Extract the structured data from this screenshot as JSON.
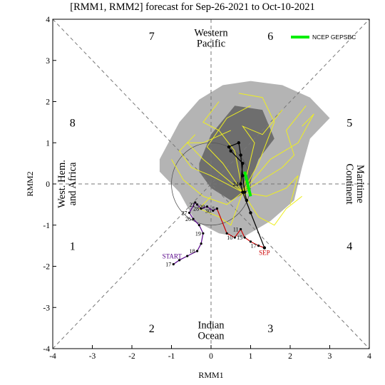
{
  "chart_data": {
    "type": "scatter",
    "title": "[RMM1, RMM2] forecast for Sep-26-2021 to Oct-10-2021",
    "xlabel": "RMM1",
    "ylabel": "RMM2",
    "xlim": [
      -4,
      4
    ],
    "ylim": [
      -4,
      4
    ],
    "x_ticks": [
      "-4",
      "-3",
      "-2",
      "-1",
      "0",
      "1",
      "2",
      "3",
      "4"
    ],
    "y_ticks": [
      "-4",
      "-3",
      "-2",
      "-1",
      "0",
      "1",
      "2",
      "3",
      "4"
    ],
    "unit_circle_radius": 1,
    "phases": [
      {
        "label": "1",
        "x": -3.5,
        "y": -1.5
      },
      {
        "label": "2",
        "x": -1.5,
        "y": -3.5
      },
      {
        "label": "3",
        "x": 1.5,
        "y": -3.5
      },
      {
        "label": "4",
        "x": 3.5,
        "y": -1.5
      },
      {
        "label": "5",
        "x": 3.5,
        "y": 1.5
      },
      {
        "label": "6",
        "x": 1.5,
        "y": 3.6
      },
      {
        "label": "7",
        "x": -1.5,
        "y": 3.6
      },
      {
        "label": "8",
        "x": -3.5,
        "y": 1.5
      }
    ],
    "regions": [
      {
        "lines": [
          "Western",
          "Pacific"
        ],
        "x": 0,
        "y": 3.55,
        "rotate": 0
      },
      {
        "lines": [
          "Indian",
          "Ocean"
        ],
        "x": 0,
        "y": -3.55,
        "rotate": 0
      },
      {
        "lines": [
          "West. Hem.",
          "and Africa"
        ],
        "x": -3.65,
        "y": 0,
        "rotate": -90
      },
      {
        "lines": [
          "Maritime",
          "Continent"
        ],
        "x": 3.65,
        "y": 0,
        "rotate": 90
      }
    ],
    "legend": {
      "label": "NCEP GEPSBC",
      "color": "#00ee00",
      "position": "top-right"
    },
    "spread_outer": [
      [
        -1.3,
        0.6
      ],
      [
        -0.8,
        1.5
      ],
      [
        -0.3,
        2.05
      ],
      [
        0.3,
        2.4
      ],
      [
        1.0,
        2.5
      ],
      [
        1.8,
        2.4
      ],
      [
        2.5,
        2.1
      ],
      [
        3.0,
        1.6
      ],
      [
        2.5,
        1.1
      ],
      [
        2.3,
        0.4
      ],
      [
        2.1,
        -0.4
      ],
      [
        1.5,
        -0.9
      ],
      [
        0.8,
        -1.3
      ],
      [
        0.2,
        -1.2
      ],
      [
        -0.4,
        -0.9
      ],
      [
        -0.8,
        -0.2
      ],
      [
        -1.3,
        0.3
      ]
    ],
    "spread_inner": [
      [
        -0.3,
        0.5
      ],
      [
        0.0,
        1.2
      ],
      [
        0.6,
        1.9
      ],
      [
        1.3,
        1.8
      ],
      [
        1.6,
        1.1
      ],
      [
        1.2,
        0.6
      ],
      [
        0.9,
        -0.2
      ],
      [
        0.5,
        -0.4
      ],
      [
        0.0,
        -0.1
      ],
      [
        -0.3,
        0.3
      ]
    ],
    "observed": {
      "color": "#550088",
      "points": [
        [
          -0.95,
          -1.95
        ],
        [
          -0.8,
          -1.85
        ],
        [
          -0.6,
          -1.75
        ],
        [
          -0.35,
          -1.63
        ],
        [
          -0.25,
          -1.45
        ],
        [
          -0.2,
          -1.2
        ],
        [
          -0.3,
          -1.0
        ],
        [
          -0.45,
          -0.85
        ],
        [
          -0.55,
          -0.7
        ],
        [
          -0.4,
          -0.45
        ],
        [
          -0.35,
          -0.5
        ],
        [
          -0.25,
          -0.6
        ],
        [
          -0.1,
          -0.55
        ],
        [
          0.05,
          -0.65
        ],
        [
          0.15,
          -0.6
        ]
      ],
      "labels": [
        {
          "text": "17",
          "i": 0
        },
        {
          "text": "18",
          "i": 3
        },
        {
          "text": "19",
          "i": 5
        },
        {
          "text": "26",
          "i": 7
        },
        {
          "text": "27",
          "i": 8
        },
        {
          "text": "21",
          "i": 10
        },
        {
          "text": "28",
          "i": 11
        },
        {
          "text": "29",
          "i": 12
        },
        {
          "text": "30",
          "i": 13
        },
        {
          "text": "5",
          "i": 14
        }
      ],
      "start_label": "START"
    },
    "observed_sep": {
      "color": "#cc0000",
      "points": [
        [
          0.15,
          -0.6
        ],
        [
          0.4,
          -1.2
        ],
        [
          0.6,
          -1.3
        ],
        [
          0.75,
          -1.1
        ],
        [
          0.85,
          -1.3
        ],
        [
          1.0,
          -1.4
        ],
        [
          1.2,
          -1.5
        ],
        [
          1.35,
          -1.55
        ]
      ],
      "labels": [
        {
          "text": "10",
          "i": 2
        },
        {
          "text": "11",
          "i": 3
        },
        {
          "text": "15",
          "i": 4
        },
        {
          "text": "17",
          "i": 6
        }
      ],
      "end_label": "SEP"
    },
    "ensemble_mean": {
      "color": "#000000",
      "points": [
        [
          1.35,
          -1.55
        ],
        [
          1.0,
          -0.7
        ],
        [
          0.8,
          -0.2
        ],
        [
          0.75,
          0.0
        ],
        [
          0.8,
          0.5
        ],
        [
          0.5,
          0.8
        ],
        [
          0.45,
          0.9
        ],
        [
          0.7,
          1.0
        ],
        [
          0.75,
          0.7
        ],
        [
          0.8,
          0.2
        ],
        [
          0.85,
          -0.2
        ],
        [
          0.9,
          -0.4
        ]
      ],
      "labels": [
        {
          "text": "24",
          "i": 3
        }
      ]
    },
    "gepsbc_forecast": {
      "color": "#00ee00",
      "points": [
        [
          0.85,
          0.3
        ],
        [
          0.9,
          0.1
        ],
        [
          0.95,
          -0.1
        ],
        [
          1.0,
          -0.3
        ],
        [
          0.95,
          -0.1
        ]
      ]
    },
    "members": [
      [
        [
          0.8,
          -0.2
        ],
        [
          1.5,
          0.6
        ],
        [
          2.2,
          1.0
        ],
        [
          2.6,
          1.7
        ],
        [
          2.3,
          1.4
        ]
      ],
      [
        [
          0.8,
          -0.2
        ],
        [
          0.3,
          0.5
        ],
        [
          -0.1,
          0.9
        ],
        [
          0.4,
          1.6
        ],
        [
          1.0,
          1.9
        ]
      ],
      [
        [
          0.8,
          -0.2
        ],
        [
          1.2,
          0.5
        ],
        [
          1.6,
          1.5
        ],
        [
          1.3,
          2.1
        ],
        [
          0.7,
          2.2
        ]
      ],
      [
        [
          0.8,
          -0.2
        ],
        [
          0.0,
          0.2
        ],
        [
          -0.5,
          0.4
        ],
        [
          -0.8,
          0.8
        ],
        [
          -0.4,
          1.2
        ]
      ],
      [
        [
          0.8,
          -0.2
        ],
        [
          1.8,
          0.4
        ],
        [
          2.1,
          0.7
        ],
        [
          1.9,
          1.3
        ],
        [
          2.4,
          1.9
        ]
      ],
      [
        [
          0.8,
          -0.2
        ],
        [
          0.4,
          -0.5
        ],
        [
          -0.2,
          -0.3
        ],
        [
          -0.7,
          0.1
        ],
        [
          -1.0,
          0.6
        ]
      ],
      [
        [
          0.8,
          -0.2
        ],
        [
          1.4,
          -0.3
        ],
        [
          1.9,
          -0.1
        ],
        [
          2.2,
          0.2
        ],
        [
          2.0,
          -0.5
        ]
      ],
      [
        [
          0.8,
          -0.2
        ],
        [
          0.6,
          0.8
        ],
        [
          0.2,
          1.3
        ],
        [
          -0.2,
          1.5
        ],
        [
          0.2,
          2.0
        ]
      ],
      [
        [
          0.8,
          -0.2
        ],
        [
          1.1,
          1.0
        ],
        [
          0.8,
          1.4
        ],
        [
          1.3,
          1.2
        ],
        [
          1.8,
          1.8
        ]
      ],
      [
        [
          0.8,
          -0.2
        ],
        [
          0.5,
          -1.0
        ],
        [
          0.2,
          -0.8
        ],
        [
          -0.3,
          -0.6
        ],
        [
          0.0,
          -0.3
        ]
      ],
      [
        [
          0.8,
          -0.2
        ],
        [
          1.2,
          -0.8
        ],
        [
          1.6,
          -1.0
        ],
        [
          1.9,
          -0.6
        ],
        [
          2.3,
          -0.3
        ]
      ],
      [
        [
          0.8,
          -0.2
        ],
        [
          -0.2,
          0.6
        ],
        [
          -0.6,
          1.0
        ],
        [
          -0.2,
          1.0
        ],
        [
          0.5,
          1.3
        ]
      ]
    ]
  }
}
